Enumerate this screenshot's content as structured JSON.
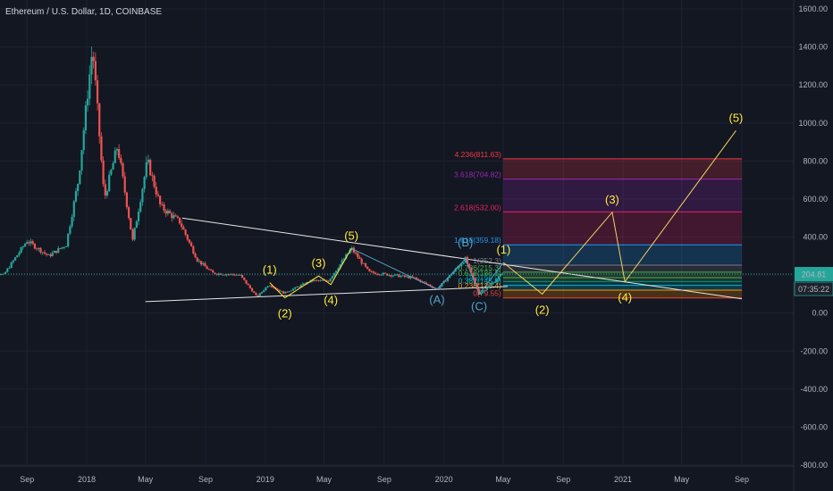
{
  "title": "Ethereum / U.S. Dollar, 1D, COINBASE",
  "colors": {
    "background": "#131722",
    "grid": "#1e2230",
    "up": "#26a69a",
    "down": "#ef5350",
    "wave_yellow": "#ffeb3b",
    "wave_cyan": "#4fa3c7",
    "trendline": "#e6e6e6",
    "price_line": "#26a69a",
    "projection": "#f0d060"
  },
  "price_tag": {
    "value": "204.81",
    "countdown": "07:35:22"
  },
  "chart_data": {
    "type": "candlestick",
    "title": "Ethereum / U.S. Dollar, 1D, COINBASE",
    "y_axis": {
      "min": -800,
      "max": 1600,
      "step": 200,
      "tick_labels": [
        "1600.00",
        "1400.00",
        "1200.00",
        "1000.00",
        "800.00",
        "600.00",
        "400.00",
        "200.00",
        "0.00",
        "-200.00",
        "-400.00",
        "-600.00",
        "-800.00"
      ]
    },
    "x_axis": {
      "ticks": [
        {
          "label": "Sep",
          "date": "2017-09-01"
        },
        {
          "label": "2018",
          "date": "2018-01-01"
        },
        {
          "label": "May",
          "date": "2018-05-01"
        },
        {
          "label": "Sep",
          "date": "2018-09-01"
        },
        {
          "label": "2019",
          "date": "2019-01-01"
        },
        {
          "label": "May",
          "date": "2019-05-01"
        },
        {
          "label": "Sep",
          "date": "2019-09-01"
        },
        {
          "label": "2020",
          "date": "2020-01-01"
        },
        {
          "label": "May",
          "date": "2020-05-01"
        },
        {
          "label": "Sep",
          "date": "2020-09-01"
        },
        {
          "label": "2021",
          "date": "2021-01-01"
        },
        {
          "label": "May",
          "date": "2021-05-01"
        },
        {
          "label": "Sep",
          "date": "2021-09-01"
        }
      ]
    },
    "price_path": [
      {
        "date": "2017-06-01",
        "price": 230
      },
      {
        "date": "2017-07-15",
        "price": 200
      },
      {
        "date": "2017-09-01",
        "price": 380
      },
      {
        "date": "2017-10-15",
        "price": 300
      },
      {
        "date": "2017-11-20",
        "price": 360
      },
      {
        "date": "2017-12-15",
        "price": 700
      },
      {
        "date": "2018-01-13",
        "price": 1400
      },
      {
        "date": "2018-02-06",
        "price": 600
      },
      {
        "date": "2018-03-05",
        "price": 880
      },
      {
        "date": "2018-04-05",
        "price": 380
      },
      {
        "date": "2018-05-05",
        "price": 800
      },
      {
        "date": "2018-06-01",
        "price": 560
      },
      {
        "date": "2018-07-10",
        "price": 480
      },
      {
        "date": "2018-08-15",
        "price": 280
      },
      {
        "date": "2018-09-15",
        "price": 210
      },
      {
        "date": "2018-11-10",
        "price": 200
      },
      {
        "date": "2018-12-15",
        "price": 85
      },
      {
        "date": "2019-01-08",
        "price": 150
      },
      {
        "date": "2019-02-08",
        "price": 105
      },
      {
        "date": "2019-04-05",
        "price": 170
      },
      {
        "date": "2019-05-10",
        "price": 170
      },
      {
        "date": "2019-06-26",
        "price": 340
      },
      {
        "date": "2019-08-01",
        "price": 215
      },
      {
        "date": "2019-09-15",
        "price": 200
      },
      {
        "date": "2019-11-01",
        "price": 185
      },
      {
        "date": "2019-12-18",
        "price": 125
      },
      {
        "date": "2020-02-14",
        "price": 285
      },
      {
        "date": "2020-03-13",
        "price": 100
      },
      {
        "date": "2020-04-15",
        "price": 170
      },
      {
        "date": "2020-05-01",
        "price": 215
      }
    ],
    "trendlines": [
      {
        "from": {
          "date": "2018-07-15",
          "price": 500
        },
        "to": {
          "date": "2021-09-01",
          "price": 75
        }
      },
      {
        "from": {
          "date": "2018-05-01",
          "price": 60
        },
        "to": {
          "date": "2020-05-10",
          "price": 140
        }
      }
    ],
    "waves_yellow": [
      {
        "label": "(1)",
        "date": "2019-01-10",
        "price": 160
      },
      {
        "label": "(2)",
        "date": "2019-02-10",
        "price": 80
      },
      {
        "label": "(3)",
        "date": "2019-04-20",
        "price": 195
      },
      {
        "label": "(4)",
        "date": "2019-05-15",
        "price": 150
      },
      {
        "label": "(5)",
        "date": "2019-06-26",
        "price": 340
      },
      {
        "label": "(1)",
        "date": "2020-05-02",
        "price": 265
      },
      {
        "label": "(2)",
        "date": "2020-07-20",
        "price": 100
      },
      {
        "label": "(3)",
        "date": "2020-12-10",
        "price": 530
      },
      {
        "label": "(4)",
        "date": "2021-01-05",
        "price": 165
      },
      {
        "label": "(5)",
        "date": "2021-08-20",
        "price": 960
      }
    ],
    "waves_cyan": [
      {
        "label": "(A)",
        "date": "2019-12-18",
        "price": 125
      },
      {
        "label": "(B)",
        "date": "2020-02-14",
        "price": 285
      },
      {
        "label": "(C)",
        "date": "2020-03-13",
        "price": 100
      }
    ],
    "fib_levels": [
      {
        "label": "4.236(811.63)",
        "ratio": 4.236,
        "price": 811.63,
        "color": "#f23645"
      },
      {
        "label": "3.618(704.82)",
        "ratio": 3.618,
        "price": 704.82,
        "color": "#9c27b0"
      },
      {
        "label": "2.618(532.00)",
        "ratio": 2.618,
        "price": 532.0,
        "color": "#e91e63"
      },
      {
        "label": "1.618(359.18)",
        "ratio": 1.618,
        "price": 359.18,
        "color": "#2196f3"
      },
      {
        "label": "1(252.3)",
        "ratio": 1,
        "price": 252.3,
        "color": "#787b86"
      },
      {
        "label": "0.786(215.3)",
        "ratio": 0.786,
        "price": 215.3,
        "color": "#4caf50"
      },
      {
        "label": "0.618(186.3)",
        "ratio": 0.618,
        "price": 186.3,
        "color": "#4caf50"
      },
      {
        "label": "0.5(166.0)",
        "ratio": 0.5,
        "price": 166.0,
        "color": "#009688"
      },
      {
        "label": "0.382(145.6)",
        "ratio": 0.382,
        "price": 145.6,
        "color": "#00bcd4"
      },
      {
        "label": "0.236(120.4)",
        "ratio": 0.236,
        "price": 120.4,
        "color": "#ff9800"
      },
      {
        "label": "0(79.55)",
        "ratio": 0,
        "price": 79.55,
        "color": "#f44336"
      }
    ],
    "fib_range": {
      "from_date": "2020-05-01",
      "to_date": "2021-09-01"
    },
    "current_price": 204.81,
    "grid": true,
    "legend": "none"
  }
}
